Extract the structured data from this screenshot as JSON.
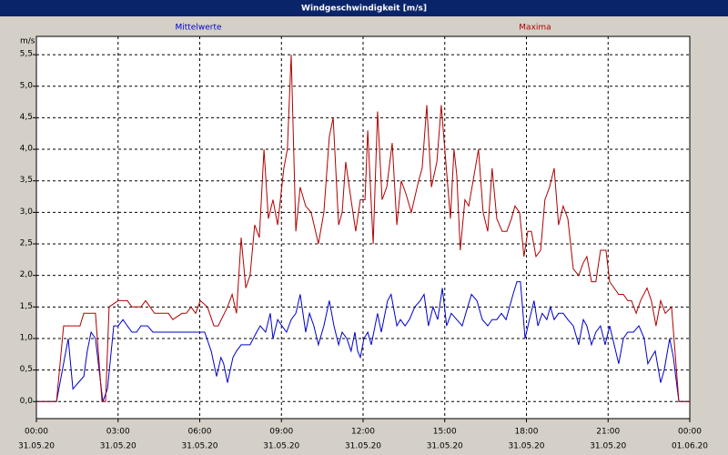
{
  "chart_data": {
    "type": "line",
    "title": "Windgeschwindigkeit [m/s]",
    "ylabel": "m/s",
    "xlim": [
      0,
      24
    ],
    "ylim": [
      -0.27,
      5.79
    ],
    "grid": true,
    "xticks": [
      {
        "value": 0,
        "label": "00:00",
        "date": "31.05.20"
      },
      {
        "value": 3,
        "label": "03:00",
        "date": "31.05.20"
      },
      {
        "value": 6,
        "label": "06:00",
        "date": "31.05.20"
      },
      {
        "value": 9,
        "label": "09:00",
        "date": "31.05.20"
      },
      {
        "value": 12,
        "label": "12:00",
        "date": "31.05.20"
      },
      {
        "value": 15,
        "label": "15:00",
        "date": "31.05.20"
      },
      {
        "value": 18,
        "label": "18:00",
        "date": "31.05.20"
      },
      {
        "value": 21,
        "label": "21:00",
        "date": "31.05.20"
      },
      {
        "value": 24,
        "label": "00:00",
        "date": "01.06.20"
      }
    ],
    "yticks": [
      {
        "value": 0,
        "label": "0,0"
      },
      {
        "value": 0.5,
        "label": "0,5"
      },
      {
        "value": 1,
        "label": "1,0"
      },
      {
        "value": 1.5,
        "label": "1,5"
      },
      {
        "value": 2,
        "label": "2,0"
      },
      {
        "value": 2.5,
        "label": "2,5"
      },
      {
        "value": 3,
        "label": "3,0"
      },
      {
        "value": 3.5,
        "label": "3,5"
      },
      {
        "value": 4,
        "label": "4,0"
      },
      {
        "value": 4.5,
        "label": "4,5"
      },
      {
        "value": 5,
        "label": "5,0"
      },
      {
        "value": 5.5,
        "label": "5,5"
      }
    ],
    "series": [
      {
        "name": "Mittelwerte",
        "color": "#0000cc",
        "x": [
          0,
          0.74,
          1.17,
          1.34,
          1.54,
          1.74,
          1.87,
          2.01,
          2.17,
          2.44,
          2.61,
          2.84,
          3.01,
          3.18,
          3.34,
          3.51,
          3.68,
          3.84,
          4.08,
          4.28,
          6.02,
          6.18,
          6.42,
          6.62,
          6.78,
          6.88,
          7.02,
          7.22,
          7.35,
          7.52,
          7.85,
          8.09,
          8.22,
          8.42,
          8.59,
          8.69,
          8.86,
          9.02,
          9.19,
          9.36,
          9.53,
          9.69,
          9.89,
          10.03,
          10.19,
          10.36,
          10.56,
          10.76,
          10.93,
          11.1,
          11.23,
          11.4,
          11.56,
          11.7,
          11.8,
          11.9,
          12.03,
          12.17,
          12.3,
          12.53,
          12.67,
          12.9,
          13.03,
          13.24,
          13.37,
          13.54,
          13.7,
          13.9,
          14.1,
          14.24,
          14.4,
          14.57,
          14.74,
          14.91,
          15.07,
          15.24,
          15.44,
          15.64,
          15.84,
          15.98,
          16.18,
          16.38,
          16.58,
          16.74,
          16.91,
          17.08,
          17.25,
          17.38,
          17.51,
          17.65,
          17.78,
          17.95,
          18.11,
          18.28,
          18.42,
          18.58,
          18.75,
          18.88,
          19.02,
          19.18,
          19.35,
          19.52,
          19.72,
          19.92,
          20.09,
          20.22,
          20.39,
          20.55,
          20.72,
          20.89,
          21.06,
          21.39,
          21.56,
          21.72,
          21.93,
          22.13,
          22.33,
          22.46,
          22.59,
          22.73,
          22.93,
          23.06,
          23.26,
          23.4,
          23.6,
          24
        ],
        "values": [
          0,
          0,
          1.0,
          0.2,
          0.3,
          0.4,
          0.8,
          1.1,
          1.0,
          0,
          0.2,
          1.2,
          1.2,
          1.3,
          1.2,
          1.1,
          1.1,
          1.2,
          1.2,
          1.1,
          1.1,
          1.1,
          0.8,
          0.4,
          0.7,
          0.6,
          0.3,
          0.7,
          0.8,
          0.9,
          0.9,
          1.1,
          1.2,
          1.1,
          1.4,
          1.0,
          1.3,
          1.2,
          1.1,
          1.3,
          1.4,
          1.7,
          1.1,
          1.4,
          1.2,
          0.9,
          1.2,
          1.6,
          1.2,
          0.9,
          1.1,
          1.0,
          0.8,
          1.1,
          0.8,
          0.7,
          1.0,
          1.1,
          0.9,
          1.4,
          1.1,
          1.6,
          1.7,
          1.2,
          1.3,
          1.2,
          1.3,
          1.5,
          1.6,
          1.7,
          1.2,
          1.5,
          1.3,
          1.8,
          1.2,
          1.4,
          1.3,
          1.2,
          1.5,
          1.7,
          1.6,
          1.3,
          1.2,
          1.3,
          1.3,
          1.4,
          1.3,
          1.5,
          1.7,
          1.9,
          1.9,
          1.0,
          1.3,
          1.6,
          1.2,
          1.4,
          1.3,
          1.5,
          1.3,
          1.4,
          1.4,
          1.3,
          1.2,
          0.9,
          1.3,
          1.2,
          0.9,
          1.1,
          1.2,
          0.9,
          1.2,
          0.6,
          1.0,
          1.1,
          1.1,
          1.2,
          1.0,
          0.6,
          0.7,
          0.8,
          0.3,
          0.5,
          1.0,
          0.7,
          0,
          0
        ]
      },
      {
        "name": "Maxima",
        "color": "#b00000",
        "x": [
          0,
          0.74,
          1.0,
          1.6,
          1.74,
          2.17,
          2.41,
          2.54,
          2.67,
          3.01,
          3.34,
          3.51,
          3.84,
          4.01,
          4.34,
          4.85,
          5.01,
          5.35,
          5.51,
          5.68,
          5.85,
          6.02,
          6.28,
          6.52,
          6.68,
          7.02,
          7.19,
          7.35,
          7.52,
          7.69,
          7.85,
          8.02,
          8.19,
          8.36,
          8.52,
          8.69,
          8.86,
          9.09,
          9.22,
          9.36,
          9.53,
          9.69,
          9.89,
          10.09,
          10.36,
          10.56,
          10.76,
          10.9,
          11.1,
          11.23,
          11.36,
          11.56,
          11.73,
          11.9,
          12.07,
          12.17,
          12.37,
          12.53,
          12.7,
          12.87,
          13.07,
          13.24,
          13.4,
          13.57,
          13.77,
          14.04,
          14.17,
          14.34,
          14.51,
          14.71,
          14.87,
          15.04,
          15.21,
          15.34,
          15.44,
          15.57,
          15.74,
          15.88,
          16.04,
          16.24,
          16.41,
          16.58,
          16.74,
          16.91,
          17.11,
          17.28,
          17.45,
          17.58,
          17.75,
          17.91,
          18.05,
          18.18,
          18.35,
          18.52,
          18.68,
          18.85,
          19.02,
          19.18,
          19.35,
          19.52,
          19.72,
          19.92,
          20.09,
          20.22,
          20.39,
          20.55,
          20.72,
          20.92,
          21.06,
          21.22,
          21.39,
          21.56,
          21.72,
          21.86,
          22.03,
          22.19,
          22.43,
          22.59,
          22.76,
          22.93,
          23.1,
          23.33,
          23.6,
          24
        ],
        "values": [
          0,
          0,
          1.2,
          1.2,
          1.4,
          1.4,
          0,
          0,
          1.5,
          1.6,
          1.6,
          1.5,
          1.5,
          1.6,
          1.4,
          1.4,
          1.3,
          1.4,
          1.4,
          1.5,
          1.4,
          1.6,
          1.5,
          1.2,
          1.2,
          1.5,
          1.7,
          1.4,
          2.6,
          1.8,
          2.0,
          2.8,
          2.6,
          4.0,
          2.9,
          3.2,
          2.8,
          3.7,
          4.0,
          5.5,
          2.7,
          3.4,
          3.1,
          3.0,
          2.5,
          3.0,
          4.2,
          4.5,
          2.8,
          3.0,
          3.8,
          3.2,
          2.7,
          3.2,
          3.2,
          4.3,
          2.5,
          4.6,
          3.2,
          3.4,
          4.1,
          2.8,
          3.5,
          3.3,
          3.0,
          3.5,
          3.7,
          4.7,
          3.4,
          3.8,
          4.7,
          3.8,
          2.9,
          4.0,
          3.6,
          2.4,
          3.2,
          3.1,
          3.5,
          4.0,
          3.0,
          2.7,
          3.7,
          2.9,
          2.7,
          2.7,
          2.9,
          3.1,
          3.0,
          2.3,
          2.7,
          2.7,
          2.3,
          2.4,
          3.2,
          3.4,
          3.7,
          2.8,
          3.1,
          2.9,
          2.1,
          2.0,
          2.2,
          2.3,
          1.9,
          1.9,
          2.4,
          2.4,
          1.9,
          1.8,
          1.7,
          1.7,
          1.6,
          1.6,
          1.4,
          1.6,
          1.8,
          1.6,
          1.2,
          1.6,
          1.4,
          1.5,
          0,
          0
        ]
      }
    ]
  }
}
